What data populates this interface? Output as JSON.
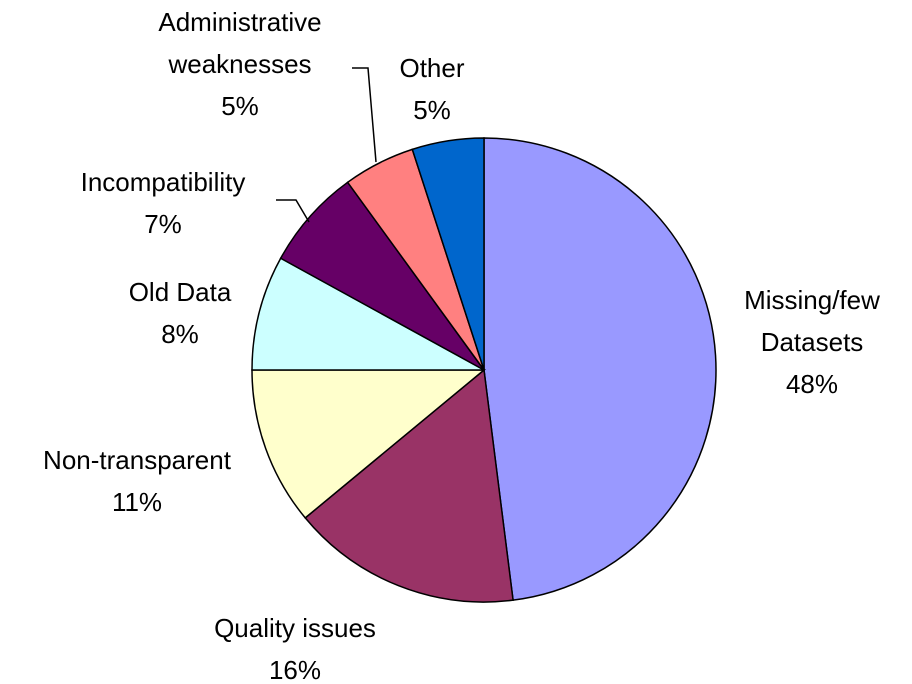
{
  "chart_data": {
    "type": "pie",
    "categories": [
      "Missing/few Datasets",
      "Quality issues",
      "Non-transparent",
      "Old Data",
      "Incompatibility",
      "Administrative weaknesses",
      "Other"
    ],
    "values": [
      48,
      16,
      11,
      8,
      7,
      5,
      5
    ],
    "value_labels": [
      "48%",
      "16%",
      "11%",
      "8%",
      "7%",
      "5%",
      "5%"
    ],
    "colors": [
      "#9999ff",
      "#993366",
      "#ffffcc",
      "#ccffff",
      "#660066",
      "#ff8080",
      "#0066cc"
    ]
  }
}
